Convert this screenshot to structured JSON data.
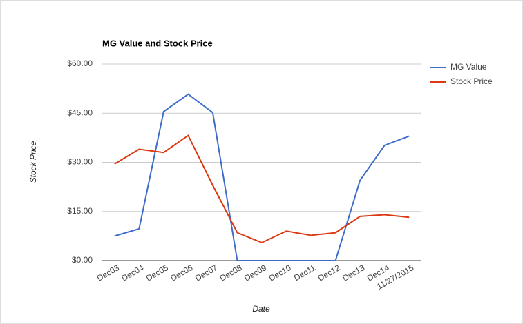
{
  "chart_data": {
    "type": "line",
    "title": "MG Value and Stock Price",
    "x_label": "Date",
    "y_label": "Stock Price",
    "categories": [
      "Dec03",
      "Dec04",
      "Dec05",
      "Dec06",
      "Dec07",
      "Dec08",
      "Dec09",
      "Dec10",
      "Dec11",
      "Dec12",
      "Dec13",
      "Dec14",
      "11/27/2015"
    ],
    "series": [
      {
        "name": "MG Value",
        "color": "#3d6cc9",
        "values": [
          7.5,
          9.7,
          45.5,
          50.8,
          45.2,
          0,
          0,
          0,
          0,
          0,
          24.5,
          35.2,
          38
        ]
      },
      {
        "name": "Stock Price",
        "color": "#dc3912",
        "values": [
          29.5,
          34,
          33,
          38.2,
          23,
          8.5,
          5.5,
          9,
          7.7,
          8.5,
          13.5,
          14,
          13.2
        ]
      }
    ],
    "ylim": [
      0,
      60
    ],
    "yticks": [
      {
        "value": 0,
        "label": "$0.00"
      },
      {
        "value": 15,
        "label": "$15.00"
      },
      {
        "value": 30,
        "label": "$30.00"
      },
      {
        "value": 45,
        "label": "$45.00"
      },
      {
        "value": 60,
        "label": "$60.00"
      }
    ],
    "grid": true,
    "legend": "right"
  }
}
